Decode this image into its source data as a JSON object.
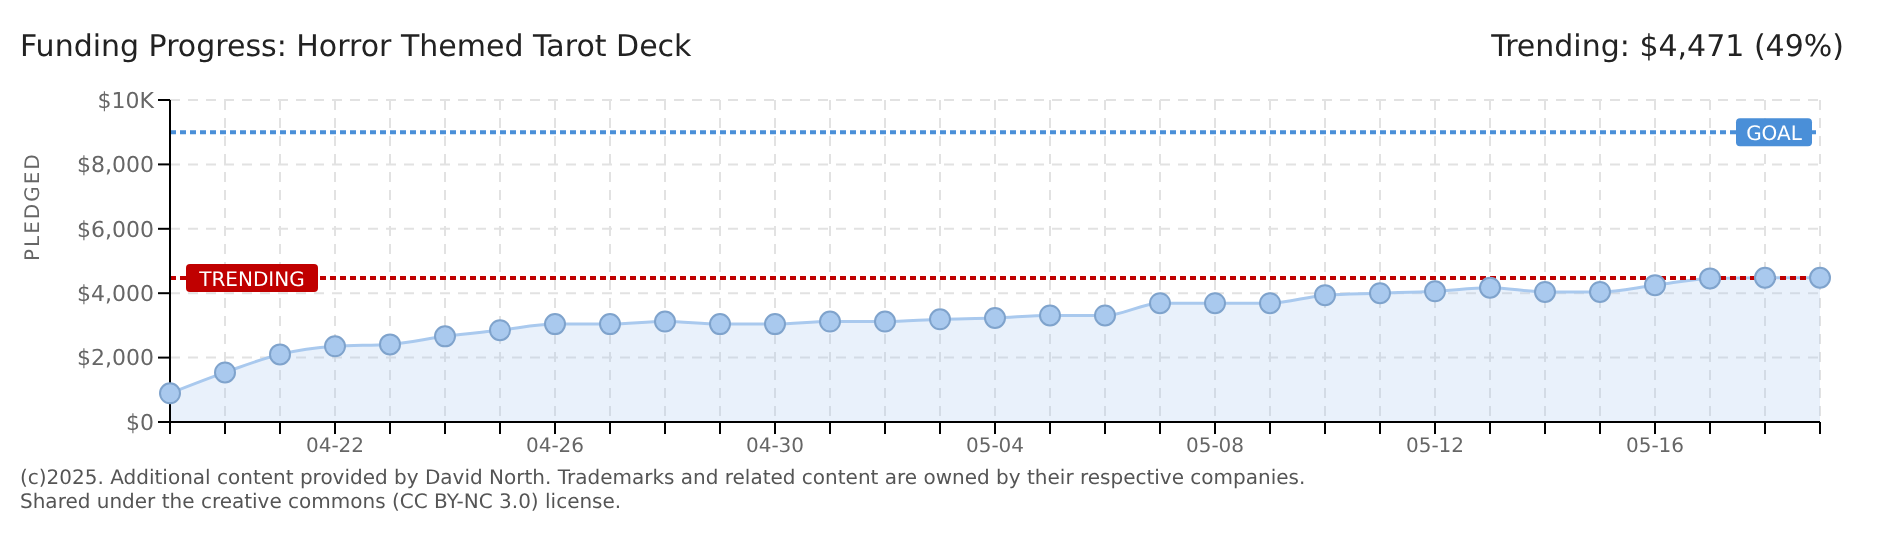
{
  "chart_data": {
    "type": "area",
    "title": "Funding Progress: Horror Themed Tarot Deck",
    "subtitle": "Trending: $4,471 (49%)",
    "ylabel": "PLEDGED",
    "categories": [
      null,
      null,
      null,
      "04-22",
      null,
      null,
      null,
      "04-26",
      null,
      null,
      null,
      "04-30",
      null,
      null,
      null,
      "05-04",
      null,
      null,
      null,
      "05-08",
      null,
      null,
      null,
      "05-12",
      null,
      null,
      null,
      "05-16",
      null,
      null,
      null
    ],
    "series": [
      {
        "color": "#a9c9ee",
        "values": [
          890,
          1540,
          2100,
          2350,
          2410,
          2660,
          2850,
          3040,
          3040,
          3120,
          3040,
          3040,
          3120,
          3120,
          3190,
          3230,
          3310,
          3310,
          3690,
          3690,
          3690,
          3940,
          4000,
          4060,
          4170,
          4040,
          4040,
          4250,
          4460,
          4480,
          4480
        ]
      }
    ],
    "ylim": [
      0,
      10000
    ],
    "yticks": [
      {
        "value": 0,
        "label": "$0"
      },
      {
        "value": 2000,
        "label": "$2,000"
      },
      {
        "value": 4000,
        "label": "$4,000"
      },
      {
        "value": 6000,
        "label": "$6,000"
      },
      {
        "value": 8000,
        "label": "$8,000"
      },
      {
        "value": 10000,
        "label": "$10K"
      }
    ],
    "ref_lines": [
      {
        "axis": "y",
        "value": 9000,
        "label": "GOAL",
        "color": "#4a8fd8",
        "line_style": "dotted"
      },
      {
        "axis": "y",
        "value": 4471,
        "label": "TRENDING",
        "color": "#c00000",
        "line_style": "dotted"
      }
    ],
    "grid": true,
    "marker": "circle",
    "annotations": [
      "(c)2025. Additional content provided by David North. Trademarks and related content are owned by their respective companies.",
      "Shared under the creative commons (CC BY-NC 3.0) license."
    ]
  }
}
